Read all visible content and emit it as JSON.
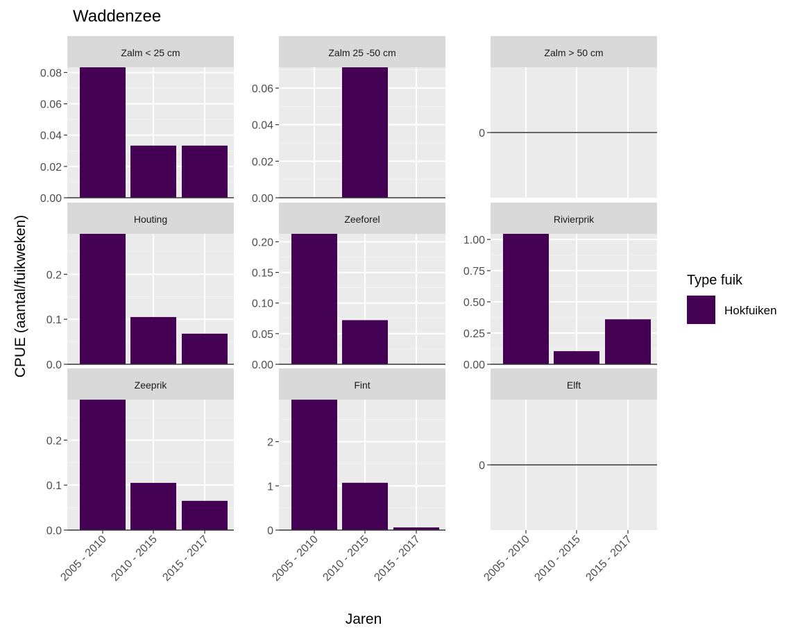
{
  "chart_data": {
    "type": "bar",
    "title": "Waddenzee",
    "xlabel": "Jaren",
    "ylabel": "CPUE (aantal/fuikweken)",
    "categories": [
      "2005 - 2010",
      "2010 - 2015",
      "2015 - 2017"
    ],
    "legend": {
      "title": "Type fuik",
      "position": "right",
      "entries": [
        {
          "name": "Hokfuiken",
          "color": "#440154"
        }
      ]
    },
    "grid": true,
    "bar_color": "#440154",
    "panel_background": "#ebebeb",
    "strip_background": "#d9d9d9",
    "panels": [
      {
        "label": "Zalm < 25 cm",
        "values": [
          0.0833,
          0.0333,
          0.0333
        ],
        "ylim": [
          0,
          0.0833
        ],
        "yticks": [
          0,
          0.02,
          0.04,
          0.06,
          0.08
        ],
        "yticklabels": [
          "0.00",
          "0.02",
          "0.04",
          "0.06",
          "0.08"
        ]
      },
      {
        "label": "Zalm 25 -50 cm",
        "values": [
          0,
          0.0714,
          0
        ],
        "ylim": [
          0,
          0.0714
        ],
        "yticks": [
          0,
          0.02,
          0.04,
          0.06
        ],
        "yticklabels": [
          "0.00",
          "0.02",
          "0.04",
          "0.06"
        ]
      },
      {
        "label": "Zalm > 50 cm",
        "values": [
          0,
          0,
          0
        ],
        "ylim": [
          -1,
          1
        ],
        "yticks": [
          0
        ],
        "yticklabels": [
          "0"
        ]
      },
      {
        "label": "Houting",
        "values": [
          0.29,
          0.105,
          0.068
        ],
        "ylim": [
          0,
          0.29
        ],
        "yticks": [
          0,
          0.1,
          0.2
        ],
        "yticklabels": [
          "0.0",
          "0.1",
          "0.2"
        ]
      },
      {
        "label": "Zeeforel",
        "values": [
          0.213,
          0.072,
          0
        ],
        "ylim": [
          0,
          0.213
        ],
        "yticks": [
          0,
          0.05,
          0.1,
          0.15,
          0.2
        ],
        "yticklabels": [
          "0.00",
          "0.05",
          "0.10",
          "0.15",
          "0.20"
        ]
      },
      {
        "label": "Rivierprik",
        "values": [
          1.045,
          0.105,
          0.36
        ],
        "ylim": [
          0,
          1.045
        ],
        "yticks": [
          0,
          0.25,
          0.5,
          0.75,
          1.0
        ],
        "yticklabels": [
          "0.00",
          "0.25",
          "0.50",
          "0.75",
          "1.00"
        ]
      },
      {
        "label": "Zeeprik",
        "values": [
          0.29,
          0.105,
          0.065
        ],
        "ylim": [
          0,
          0.29
        ],
        "yticks": [
          0,
          0.1,
          0.2
        ],
        "yticklabels": [
          "0.0",
          "0.1",
          "0.2"
        ]
      },
      {
        "label": "Fint",
        "values": [
          2.95,
          1.07,
          0.06
        ],
        "ylim": [
          0,
          2.95
        ],
        "yticks": [
          0,
          1,
          2
        ],
        "yticklabels": [
          "0",
          "1",
          "2"
        ]
      },
      {
        "label": "Elft",
        "values": [
          0,
          0,
          0
        ],
        "ylim": [
          -1,
          1
        ],
        "yticks": [
          0
        ],
        "yticklabels": [
          "0"
        ]
      }
    ]
  }
}
